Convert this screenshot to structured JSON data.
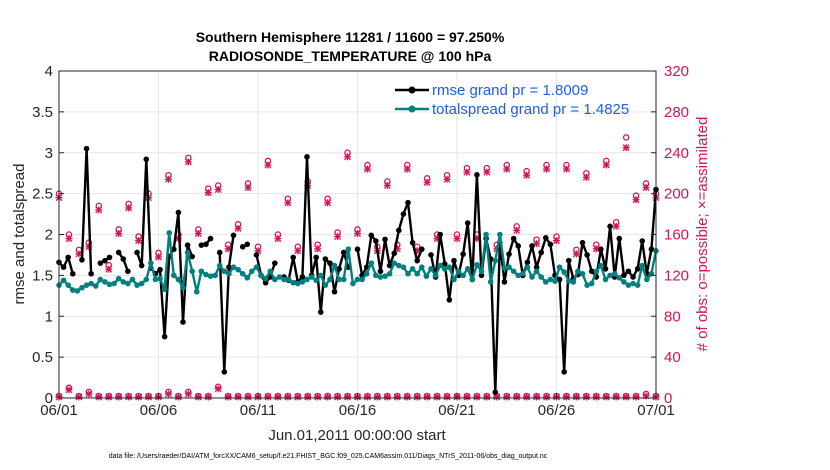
{
  "chart_data": {
    "type": "line",
    "title_line1": "Southern Hemisphere 11281 / 11600 = 97.250%",
    "title_line2": "RADIOSONDE_TEMPERATURE @ 100 hPa",
    "ylabel": "rmse and totalspread",
    "ylabel_right": "# of obs: o=possible; ×=assimilated",
    "xlabel": "Jun.01,2011 00:00:00 start",
    "footnote": "data file: /Users/raeder/DAI/ATM_forcXX/CAM6_setup/f.e21.FHIST_BGC.f09_025.CAM6assim.011/Diags_NTrS_2011-06/obs_diag_output.nc",
    "xlim": [
      0,
      30
    ],
    "ylim": [
      0,
      4
    ],
    "ylim_right": [
      0,
      320
    ],
    "x_ticks": [
      0,
      5,
      10,
      15,
      20,
      25,
      30
    ],
    "x_tick_labels": [
      "06/01",
      "06/06",
      "06/11",
      "06/16",
      "06/21",
      "06/26",
      "07/01"
    ],
    "y_ticks": [
      0,
      0.5,
      1,
      1.5,
      2,
      2.5,
      3,
      3.5,
      4
    ],
    "y_tick_labels": [
      "0",
      "0.5",
      "1",
      "1.5",
      "2",
      "2.5",
      "3",
      "3.5",
      "4"
    ],
    "y_right_ticks": [
      0,
      40,
      80,
      120,
      160,
      200,
      240,
      280,
      320
    ],
    "y_right_tick_labels": [
      "0",
      "40",
      "80",
      "120",
      "160",
      "200",
      "240",
      "280",
      "320"
    ],
    "legend": [
      {
        "label": "rmse grand pr = 1.8009",
        "color": "#000000"
      },
      {
        "label": "totalspread grand pr = 1.4825",
        "color": "#00807f"
      }
    ],
    "colors": {
      "rmse": "#000000",
      "spread": "#00807f",
      "obs": "#d4145a",
      "axis": "#262626",
      "legend_text": "#1f5fe0"
    },
    "series": [
      {
        "name": "rmse",
        "values": [
          1.66,
          1.6,
          1.72,
          1.52,
          null,
          1.69,
          3.05,
          1.52,
          null,
          1.65,
          1.68,
          1.72,
          null,
          1.78,
          1.7,
          1.55,
          null,
          1.78,
          1.62,
          2.92,
          1.59,
          1.52,
          1.57,
          0.75,
          1.73,
          1.82,
          2.27,
          0.93,
          1.87,
          1.73,
          null,
          1.87,
          1.88,
          1.95,
          null,
          1.78,
          0.32,
          1.6,
          1.99,
          null,
          1.85,
          1.88,
          null,
          1.75,
          1.5,
          1.41,
          1.48,
          1.65,
          null,
          1.48,
          1.44,
          1.72,
          1.42,
          1.48,
          2.95,
          1.5,
          1.72,
          1.05,
          1.7,
          1.65,
          1.3,
          1.58,
          1.78,
          1.6,
          null,
          1.82,
          1.5,
          1.6,
          1.99,
          1.92,
          1.55,
          1.94,
          1.62,
          1.77,
          2.05,
          2.25,
          2.39,
          1.9,
          1.68,
          1.82,
          null,
          1.75,
          1.48,
          2.0,
          1.64,
          1.2,
          1.68,
          1.5,
          1.76,
          2.14,
          1.45,
          2.73,
          1.5,
          1.95,
          1.7,
          0.07,
          1.9,
          1.42,
          1.76,
          1.95,
          1.86,
          1.5,
          1.66,
          1.86,
          1.6,
          1.78,
          1.96,
          1.88,
          1.5,
          1.45,
          0.32,
          1.68,
          1.46,
          1.51,
          1.9,
          1.75,
          1.55,
          1.48,
          1.82,
          1.58,
          2.1,
          1.48,
          1.95,
          1.5,
          1.55,
          1.48,
          1.58,
          1.92,
          1.52,
          1.82,
          2.55
        ]
      },
      {
        "name": "totalspread",
        "values": [
          1.38,
          1.44,
          1.38,
          1.32,
          1.31,
          1.35,
          1.38,
          1.4,
          1.37,
          1.45,
          1.42,
          1.39,
          1.4,
          1.46,
          1.42,
          1.4,
          1.45,
          1.38,
          1.4,
          1.45,
          1.65,
          1.45,
          1.46,
          1.33,
          2.02,
          1.5,
          1.45,
          1.35,
          1.78,
          1.55,
          1.3,
          1.55,
          1.51,
          1.49,
          1.5,
          1.62,
          1.55,
          1.52,
          1.6,
          1.57,
          1.52,
          1.47,
          1.55,
          1.6,
          1.5,
          1.46,
          1.55,
          1.45,
          1.48,
          1.45,
          1.45,
          1.41,
          1.4,
          1.42,
          1.45,
          1.48,
          1.44,
          1.5,
          1.38,
          1.45,
          1.62,
          1.45,
          1.45,
          1.82,
          1.4,
          1.45,
          1.45,
          1.52,
          1.65,
          1.5,
          1.48,
          1.49,
          1.52,
          1.65,
          1.62,
          1.6,
          1.52,
          1.58,
          1.52,
          1.6,
          1.49,
          1.58,
          1.5,
          1.62,
          1.58,
          1.6,
          1.45,
          1.55,
          1.5,
          1.58,
          1.45,
          1.63,
          1.55,
          2.0,
          1.42,
          1.68,
          2.0,
          1.59,
          1.6,
          1.55,
          1.5,
          1.52,
          1.6,
          1.48,
          1.55,
          1.48,
          1.42,
          1.45,
          1.43,
          1.6,
          1.54,
          1.43,
          1.42,
          1.55,
          1.52,
          1.38,
          1.4,
          1.55,
          1.62,
          1.45,
          1.5,
          1.52,
          1.47,
          1.42,
          1.38,
          1.4,
          1.38,
          1.62,
          1.45,
          1.52,
          1.8
        ]
      }
    ],
    "obs_possible": [
      {
        "x": 0.0,
        "y": 200
      },
      {
        "x": 0.5,
        "y": 160
      },
      {
        "x": 1.0,
        "y": 145
      },
      {
        "x": 1.5,
        "y": 152
      },
      {
        "x": 2.0,
        "y": 188
      },
      {
        "x": 2.5,
        "y": 130
      },
      {
        "x": 3.0,
        "y": 165
      },
      {
        "x": 3.5,
        "y": 190
      },
      {
        "x": 4.0,
        "y": 158
      },
      {
        "x": 4.5,
        "y": 200
      },
      {
        "x": 5.0,
        "y": 142
      },
      {
        "x": 5.5,
        "y": 218
      },
      {
        "x": 6.0,
        "y": 160
      },
      {
        "x": 6.5,
        "y": 235
      },
      {
        "x": 7.0,
        "y": 165
      },
      {
        "x": 7.5,
        "y": 205
      },
      {
        "x": 8.0,
        "y": 208
      },
      {
        "x": 8.5,
        "y": 150
      },
      {
        "x": 9.0,
        "y": 170
      },
      {
        "x": 9.5,
        "y": 210
      },
      {
        "x": 10.0,
        "y": 148
      },
      {
        "x": 10.5,
        "y": 232
      },
      {
        "x": 11.0,
        "y": 160
      },
      {
        "x": 11.5,
        "y": 195
      },
      {
        "x": 12.0,
        "y": 148
      },
      {
        "x": 12.5,
        "y": 212
      },
      {
        "x": 13.0,
        "y": 150
      },
      {
        "x": 13.5,
        "y": 195
      },
      {
        "x": 14.0,
        "y": 162
      },
      {
        "x": 14.5,
        "y": 240
      },
      {
        "x": 15.0,
        "y": 165
      },
      {
        "x": 15.5,
        "y": 228
      },
      {
        "x": 16.0,
        "y": 148
      },
      {
        "x": 16.5,
        "y": 212
      },
      {
        "x": 17.0,
        "y": 150
      },
      {
        "x": 17.5,
        "y": 228
      },
      {
        "x": 18.0,
        "y": 148
      },
      {
        "x": 18.5,
        "y": 215
      },
      {
        "x": 19.0,
        "y": 160
      },
      {
        "x": 19.5,
        "y": 218
      },
      {
        "x": 20.0,
        "y": 160
      },
      {
        "x": 20.5,
        "y": 225
      },
      {
        "x": 21.0,
        "y": 160
      },
      {
        "x": 21.5,
        "y": 225
      },
      {
        "x": 22.0,
        "y": 150
      },
      {
        "x": 22.5,
        "y": 228
      },
      {
        "x": 23.0,
        "y": 168
      },
      {
        "x": 23.5,
        "y": 222
      },
      {
        "x": 24.0,
        "y": 155
      },
      {
        "x": 24.5,
        "y": 228
      },
      {
        "x": 25.0,
        "y": 158
      },
      {
        "x": 25.5,
        "y": 228
      },
      {
        "x": 26.0,
        "y": 145
      },
      {
        "x": 26.5,
        "y": 220
      },
      {
        "x": 27.0,
        "y": 150
      },
      {
        "x": 27.5,
        "y": 232
      },
      {
        "x": 28.0,
        "y": 172
      },
      {
        "x": 28.5,
        "y": 255
      },
      {
        "x": 29.0,
        "y": 198
      },
      {
        "x": 29.5,
        "y": 210
      },
      {
        "x": 30.0,
        "y": 200
      }
    ],
    "obs_assimilated": [
      {
        "x": 0.0,
        "y": 196
      },
      {
        "x": 0.5,
        "y": 156
      },
      {
        "x": 1.0,
        "y": 141
      },
      {
        "x": 1.5,
        "y": 148
      },
      {
        "x": 2.0,
        "y": 184
      },
      {
        "x": 2.5,
        "y": 126
      },
      {
        "x": 3.0,
        "y": 161
      },
      {
        "x": 3.5,
        "y": 186
      },
      {
        "x": 4.0,
        "y": 154
      },
      {
        "x": 4.5,
        "y": 196
      },
      {
        "x": 5.0,
        "y": 138
      },
      {
        "x": 5.5,
        "y": 214
      },
      {
        "x": 6.0,
        "y": 156
      },
      {
        "x": 6.5,
        "y": 231
      },
      {
        "x": 7.0,
        "y": 161
      },
      {
        "x": 7.5,
        "y": 201
      },
      {
        "x": 8.0,
        "y": 204
      },
      {
        "x": 8.5,
        "y": 146
      },
      {
        "x": 9.0,
        "y": 166
      },
      {
        "x": 9.5,
        "y": 206
      },
      {
        "x": 10.0,
        "y": 144
      },
      {
        "x": 10.5,
        "y": 228
      },
      {
        "x": 11.0,
        "y": 156
      },
      {
        "x": 11.5,
        "y": 191
      },
      {
        "x": 12.0,
        "y": 144
      },
      {
        "x": 12.5,
        "y": 208
      },
      {
        "x": 13.0,
        "y": 146
      },
      {
        "x": 13.5,
        "y": 191
      },
      {
        "x": 14.0,
        "y": 158
      },
      {
        "x": 14.5,
        "y": 236
      },
      {
        "x": 15.0,
        "y": 161
      },
      {
        "x": 15.5,
        "y": 224
      },
      {
        "x": 16.0,
        "y": 144
      },
      {
        "x": 16.5,
        "y": 208
      },
      {
        "x": 17.0,
        "y": 146
      },
      {
        "x": 17.5,
        "y": 224
      },
      {
        "x": 18.0,
        "y": 144
      },
      {
        "x": 18.5,
        "y": 211
      },
      {
        "x": 19.0,
        "y": 156
      },
      {
        "x": 19.5,
        "y": 214
      },
      {
        "x": 20.0,
        "y": 156
      },
      {
        "x": 20.5,
        "y": 221
      },
      {
        "x": 21.0,
        "y": 156
      },
      {
        "x": 21.5,
        "y": 221
      },
      {
        "x": 22.0,
        "y": 146
      },
      {
        "x": 22.5,
        "y": 224
      },
      {
        "x": 23.0,
        "y": 164
      },
      {
        "x": 23.5,
        "y": 218
      },
      {
        "x": 24.0,
        "y": 151
      },
      {
        "x": 24.5,
        "y": 224
      },
      {
        "x": 25.0,
        "y": 154
      },
      {
        "x": 25.5,
        "y": 224
      },
      {
        "x": 26.0,
        "y": 141
      },
      {
        "x": 26.5,
        "y": 216
      },
      {
        "x": 27.0,
        "y": 146
      },
      {
        "x": 27.5,
        "y": 228
      },
      {
        "x": 28.0,
        "y": 168
      },
      {
        "x": 28.5,
        "y": 245
      },
      {
        "x": 29.0,
        "y": 194
      },
      {
        "x": 29.5,
        "y": 206
      },
      {
        "x": 30.0,
        "y": 196
      }
    ],
    "obs_bottom_possible": [
      {
        "x": 0.0,
        "y": 2
      },
      {
        "x": 0.5,
        "y": 10
      },
      {
        "x": 1.0,
        "y": 2
      },
      {
        "x": 1.5,
        "y": 6
      },
      {
        "x": 2.0,
        "y": 2
      },
      {
        "x": 2.5,
        "y": 2
      },
      {
        "x": 3.0,
        "y": 2
      },
      {
        "x": 3.5,
        "y": 2
      },
      {
        "x": 4.0,
        "y": 2
      },
      {
        "x": 4.5,
        "y": 2
      },
      {
        "x": 5.0,
        "y": 2
      },
      {
        "x": 5.5,
        "y": 6
      },
      {
        "x": 6.0,
        "y": 2
      },
      {
        "x": 6.5,
        "y": 6
      },
      {
        "x": 7.0,
        "y": 2
      },
      {
        "x": 7.5,
        "y": 2
      },
      {
        "x": 8.0,
        "y": 11
      },
      {
        "x": 8.5,
        "y": 2
      },
      {
        "x": 9.0,
        "y": 2
      },
      {
        "x": 9.5,
        "y": 2
      },
      {
        "x": 10.0,
        "y": 2
      },
      {
        "x": 10.5,
        "y": 2
      },
      {
        "x": 11.0,
        "y": 2
      },
      {
        "x": 11.5,
        "y": 2
      },
      {
        "x": 12.0,
        "y": 2
      },
      {
        "x": 12.5,
        "y": 2
      },
      {
        "x": 13.0,
        "y": 2
      },
      {
        "x": 13.5,
        "y": 2
      },
      {
        "x": 14.0,
        "y": 2
      },
      {
        "x": 14.5,
        "y": 2
      },
      {
        "x": 15.0,
        "y": 2
      },
      {
        "x": 15.5,
        "y": 2
      },
      {
        "x": 16.0,
        "y": 2
      },
      {
        "x": 16.5,
        "y": 2
      },
      {
        "x": 17.0,
        "y": 2
      },
      {
        "x": 17.5,
        "y": 2
      },
      {
        "x": 18.0,
        "y": 2
      },
      {
        "x": 18.5,
        "y": 2
      },
      {
        "x": 19.0,
        "y": 2
      },
      {
        "x": 19.5,
        "y": 2
      },
      {
        "x": 20.0,
        "y": 2
      },
      {
        "x": 20.5,
        "y": 2
      },
      {
        "x": 21.0,
        "y": 2
      },
      {
        "x": 21.5,
        "y": 2
      },
      {
        "x": 22.0,
        "y": 2
      },
      {
        "x": 22.5,
        "y": 2
      },
      {
        "x": 23.0,
        "y": 2
      },
      {
        "x": 23.5,
        "y": 2
      },
      {
        "x": 24.0,
        "y": 2
      },
      {
        "x": 24.5,
        "y": 2
      },
      {
        "x": 25.0,
        "y": 2
      },
      {
        "x": 25.5,
        "y": 2
      },
      {
        "x": 26.0,
        "y": 2
      },
      {
        "x": 26.5,
        "y": 2
      },
      {
        "x": 27.0,
        "y": 2
      },
      {
        "x": 27.5,
        "y": 2
      },
      {
        "x": 28.0,
        "y": 2
      },
      {
        "x": 28.5,
        "y": 2
      },
      {
        "x": 29.0,
        "y": 2
      },
      {
        "x": 29.5,
        "y": 4
      },
      {
        "x": 30.0,
        "y": 2
      }
    ],
    "obs_bottom_assimilated": [
      {
        "x": 0.0,
        "y": 1
      },
      {
        "x": 0.5,
        "y": 8
      },
      {
        "x": 1.0,
        "y": 1
      },
      {
        "x": 1.5,
        "y": 4
      },
      {
        "x": 2.0,
        "y": 1
      },
      {
        "x": 2.5,
        "y": 1
      },
      {
        "x": 3.0,
        "y": 1
      },
      {
        "x": 3.5,
        "y": 1
      },
      {
        "x": 4.0,
        "y": 1
      },
      {
        "x": 4.5,
        "y": 1
      },
      {
        "x": 5.0,
        "y": 1
      },
      {
        "x": 5.5,
        "y": 4
      },
      {
        "x": 6.0,
        "y": 1
      },
      {
        "x": 6.5,
        "y": 4
      },
      {
        "x": 7.0,
        "y": 1
      },
      {
        "x": 7.5,
        "y": 1
      },
      {
        "x": 8.0,
        "y": 9
      },
      {
        "x": 8.5,
        "y": 1
      },
      {
        "x": 9.0,
        "y": 1
      },
      {
        "x": 9.5,
        "y": 1
      },
      {
        "x": 10.0,
        "y": 1
      },
      {
        "x": 10.5,
        "y": 1
      },
      {
        "x": 11.0,
        "y": 1
      },
      {
        "x": 11.5,
        "y": 1
      },
      {
        "x": 12.0,
        "y": 1
      },
      {
        "x": 12.5,
        "y": 1
      },
      {
        "x": 13.0,
        "y": 1
      },
      {
        "x": 13.5,
        "y": 1
      },
      {
        "x": 14.0,
        "y": 1
      },
      {
        "x": 14.5,
        "y": 1
      },
      {
        "x": 15.0,
        "y": 1
      },
      {
        "x": 15.5,
        "y": 1
      },
      {
        "x": 16.0,
        "y": 1
      },
      {
        "x": 16.5,
        "y": 1
      },
      {
        "x": 17.0,
        "y": 1
      },
      {
        "x": 17.5,
        "y": 1
      },
      {
        "x": 18.0,
        "y": 1
      },
      {
        "x": 18.5,
        "y": 1
      },
      {
        "x": 19.0,
        "y": 1
      },
      {
        "x": 19.5,
        "y": 1
      },
      {
        "x": 20.0,
        "y": 1
      },
      {
        "x": 20.5,
        "y": 1
      },
      {
        "x": 21.0,
        "y": 1
      },
      {
        "x": 21.5,
        "y": 1
      },
      {
        "x": 22.0,
        "y": 1
      },
      {
        "x": 22.5,
        "y": 1
      },
      {
        "x": 23.0,
        "y": 1
      },
      {
        "x": 23.5,
        "y": 1
      },
      {
        "x": 24.0,
        "y": 1
      },
      {
        "x": 24.5,
        "y": 1
      },
      {
        "x": 25.0,
        "y": 1
      },
      {
        "x": 25.5,
        "y": 1
      },
      {
        "x": 26.0,
        "y": 1
      },
      {
        "x": 26.5,
        "y": 1
      },
      {
        "x": 27.0,
        "y": 1
      },
      {
        "x": 27.5,
        "y": 1
      },
      {
        "x": 28.0,
        "y": 1
      },
      {
        "x": 28.5,
        "y": 1
      },
      {
        "x": 29.0,
        "y": 1
      },
      {
        "x": 29.5,
        "y": 2
      },
      {
        "x": 30.0,
        "y": 1
      }
    ]
  }
}
